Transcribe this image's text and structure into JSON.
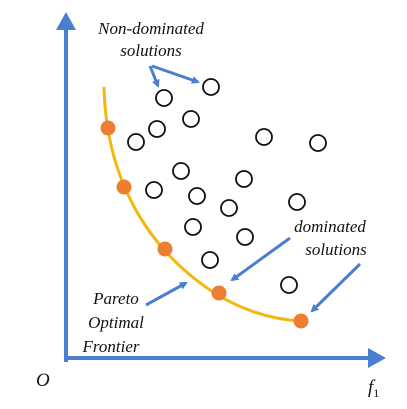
{
  "labels": {
    "non_dominated_line1": "Non-dominated",
    "non_dominated_line2": "solutions",
    "dominated_line1": "dominated",
    "dominated_line2": "solutions",
    "pareto_line1": "Pareto",
    "pareto_line2": "Optimal",
    "pareto_line3": "Frontier",
    "origin": "O",
    "x_axis": "f",
    "x_axis_sub": "1"
  },
  "colors": {
    "axis": "#4a7fd0",
    "arrow": "#4a7fd0",
    "frontier_curve": "#f2b810",
    "frontier_point": "#ed7d31",
    "dominated_circle": "#111111"
  }
}
